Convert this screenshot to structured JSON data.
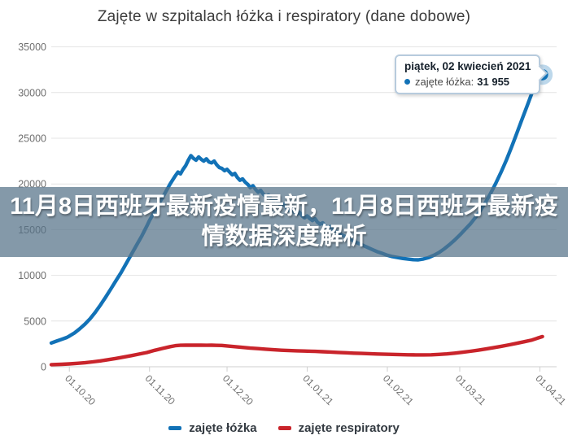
{
  "chart": {
    "title": "Zajęte w szpitalach łóżka i respiratory (dane dobowe)"
  },
  "overlay_caption": {
    "full_text": "11月8日西班牙最新疫情最新，11月8日西班牙最新疫情数据深度解析",
    "line1": "11月8日西班牙最新疫情最新，11月8日西班牙最新疫",
    "line2": "情数据深度解析"
  },
  "tooltip": {
    "date": "piątek, 02 kwiecień 2021",
    "series_label": "zajęte łóżka:",
    "value": "31 955",
    "accent_color": "#1272b7"
  },
  "legend": {
    "items": [
      {
        "label": "zajęte łóżka",
        "color": "#1272b7"
      },
      {
        "label": "zajęte respiratory",
        "color": "#c9242b"
      }
    ]
  },
  "chart_data": {
    "type": "line",
    "title": "Zajęte w szpitalach łóżka i respiratory (dane dobowe)",
    "legend_position": "bottom-center",
    "x_axis": {
      "tick_labels": [
        "01.10.20",
        "01.11.20",
        "01.12.20",
        "01.01.21",
        "01.02.21",
        "01.03.21",
        "01.04.21"
      ],
      "tick_day_offsets": [
        7,
        38,
        68,
        99,
        130,
        158,
        189
      ],
      "note": "x unit = days from first plotted sample (late Sep 2020); labels rotated 45deg"
    },
    "y_axis": {
      "tick_values": [
        0,
        5000,
        10000,
        15000,
        20000,
        25000,
        30000,
        35000
      ],
      "range": [
        0,
        35000
      ],
      "grid": true
    },
    "series": [
      {
        "name": "zajęte łóżka",
        "color": "#1272b7",
        "points": [
          [
            0,
            2600
          ],
          [
            2,
            2800
          ],
          [
            4,
            3000
          ],
          [
            6,
            3200
          ],
          [
            7,
            3350
          ],
          [
            9,
            3700
          ],
          [
            11,
            4150
          ],
          [
            13,
            4650
          ],
          [
            15,
            5250
          ],
          [
            17,
            5950
          ],
          [
            19,
            6750
          ],
          [
            21,
            7600
          ],
          [
            23,
            8500
          ],
          [
            25,
            9400
          ],
          [
            27,
            10300
          ],
          [
            29,
            11300
          ],
          [
            31,
            12300
          ],
          [
            33,
            13300
          ],
          [
            35,
            14300
          ],
          [
            37,
            15400
          ],
          [
            38,
            16000
          ],
          [
            40,
            17000
          ],
          [
            42,
            18000
          ],
          [
            44,
            19000
          ],
          [
            46,
            20000
          ],
          [
            48,
            20900
          ],
          [
            49,
            21300
          ],
          [
            50,
            21100
          ],
          [
            51,
            21600
          ],
          [
            52,
            22000
          ],
          [
            53,
            22600
          ],
          [
            54,
            23100
          ],
          [
            55,
            22800
          ],
          [
            56,
            22600
          ],
          [
            57,
            22950
          ],
          [
            58,
            22700
          ],
          [
            59,
            22500
          ],
          [
            60,
            22750
          ],
          [
            61,
            22400
          ],
          [
            62,
            22300
          ],
          [
            63,
            22500
          ],
          [
            64,
            22100
          ],
          [
            65,
            21800
          ],
          [
            66,
            21700
          ],
          [
            67,
            21450
          ],
          [
            68,
            21600
          ],
          [
            69,
            21300
          ],
          [
            70,
            21000
          ],
          [
            71,
            21150
          ],
          [
            72,
            20700
          ],
          [
            73,
            20400
          ],
          [
            74,
            20550
          ],
          [
            75,
            20200
          ],
          [
            76,
            19950
          ],
          [
            77,
            19600
          ],
          [
            78,
            19800
          ],
          [
            79,
            19400
          ],
          [
            80,
            19100
          ],
          [
            81,
            19300
          ],
          [
            82,
            18900
          ],
          [
            83,
            18600
          ],
          [
            84,
            18800
          ],
          [
            85,
            18400
          ],
          [
            86,
            18100
          ],
          [
            87,
            18300
          ],
          [
            88,
            17900
          ],
          [
            89,
            17600
          ],
          [
            90,
            17800
          ],
          [
            91,
            17400
          ],
          [
            92,
            17100
          ],
          [
            93,
            17300
          ],
          [
            94,
            16900
          ],
          [
            95,
            16700
          ],
          [
            96,
            16900
          ],
          [
            97,
            16500
          ],
          [
            98,
            16300
          ],
          [
            99,
            16500
          ],
          [
            100,
            16200
          ],
          [
            101,
            16000
          ],
          [
            102,
            16200
          ],
          [
            103,
            15800
          ],
          [
            104,
            15600
          ],
          [
            105,
            15750
          ],
          [
            106,
            15400
          ],
          [
            107,
            15200
          ],
          [
            108,
            15350
          ],
          [
            109,
            15000
          ],
          [
            110,
            14800
          ],
          [
            112,
            14500
          ],
          [
            114,
            14200
          ],
          [
            116,
            13900
          ],
          [
            118,
            13600
          ],
          [
            120,
            13350
          ],
          [
            122,
            13100
          ],
          [
            124,
            12850
          ],
          [
            126,
            12600
          ],
          [
            128,
            12400
          ],
          [
            130,
            12200
          ],
          [
            132,
            12050
          ],
          [
            134,
            11950
          ],
          [
            136,
            11850
          ],
          [
            138,
            11780
          ],
          [
            140,
            11720
          ],
          [
            142,
            11700
          ],
          [
            144,
            11800
          ],
          [
            146,
            11950
          ],
          [
            148,
            12200
          ],
          [
            150,
            12500
          ],
          [
            152,
            12900
          ],
          [
            154,
            13350
          ],
          [
            156,
            13850
          ],
          [
            158,
            14400
          ],
          [
            160,
            15000
          ],
          [
            162,
            15600
          ],
          [
            164,
            16300
          ],
          [
            166,
            17100
          ],
          [
            168,
            18000
          ],
          [
            170,
            19000
          ],
          [
            172,
            20100
          ],
          [
            174,
            21300
          ],
          [
            176,
            22600
          ],
          [
            178,
            24000
          ],
          [
            180,
            25500
          ],
          [
            182,
            27000
          ],
          [
            184,
            28500
          ],
          [
            186,
            30000
          ],
          [
            188,
            31200
          ],
          [
            189,
            31600
          ],
          [
            190,
            31955
          ]
        ]
      },
      {
        "name": "zajęte respiratory",
        "color": "#c9242b",
        "points": [
          [
            0,
            230
          ],
          [
            4,
            270
          ],
          [
            7,
            310
          ],
          [
            10,
            370
          ],
          [
            13,
            440
          ],
          [
            16,
            530
          ],
          [
            19,
            640
          ],
          [
            22,
            770
          ],
          [
            25,
            910
          ],
          [
            28,
            1060
          ],
          [
            31,
            1220
          ],
          [
            34,
            1390
          ],
          [
            37,
            1560
          ],
          [
            40,
            1800
          ],
          [
            43,
            2000
          ],
          [
            46,
            2200
          ],
          [
            48,
            2300
          ],
          [
            50,
            2350
          ],
          [
            52,
            2370
          ],
          [
            54,
            2360
          ],
          [
            56,
            2370
          ],
          [
            58,
            2360
          ],
          [
            60,
            2350
          ],
          [
            62,
            2360
          ],
          [
            64,
            2340
          ],
          [
            66,
            2330
          ],
          [
            68,
            2280
          ],
          [
            71,
            2200
          ],
          [
            74,
            2120
          ],
          [
            77,
            2040
          ],
          [
            80,
            1980
          ],
          [
            83,
            1920
          ],
          [
            86,
            1860
          ],
          [
            89,
            1810
          ],
          [
            92,
            1770
          ],
          [
            95,
            1740
          ],
          [
            98,
            1720
          ],
          [
            99,
            1710
          ],
          [
            102,
            1680
          ],
          [
            105,
            1650
          ],
          [
            108,
            1610
          ],
          [
            111,
            1570
          ],
          [
            114,
            1530
          ],
          [
            117,
            1490
          ],
          [
            120,
            1460
          ],
          [
            123,
            1430
          ],
          [
            126,
            1400
          ],
          [
            129,
            1370
          ],
          [
            132,
            1350
          ],
          [
            135,
            1330
          ],
          [
            138,
            1310
          ],
          [
            141,
            1300
          ],
          [
            144,
            1295
          ],
          [
            147,
            1310
          ],
          [
            150,
            1350
          ],
          [
            153,
            1410
          ],
          [
            156,
            1490
          ],
          [
            159,
            1580
          ],
          [
            162,
            1690
          ],
          [
            165,
            1810
          ],
          [
            168,
            1940
          ],
          [
            171,
            2080
          ],
          [
            174,
            2230
          ],
          [
            177,
            2390
          ],
          [
            180,
            2560
          ],
          [
            183,
            2740
          ],
          [
            186,
            2930
          ],
          [
            188,
            3120
          ],
          [
            190,
            3300
          ]
        ]
      }
    ],
    "highlight_point": {
      "series": "zajęte łóżka",
      "day": 190,
      "value": 31955,
      "tooltip_date": "piątek, 02 kwiecień 2021",
      "tooltip_value": "31 955"
    }
  }
}
